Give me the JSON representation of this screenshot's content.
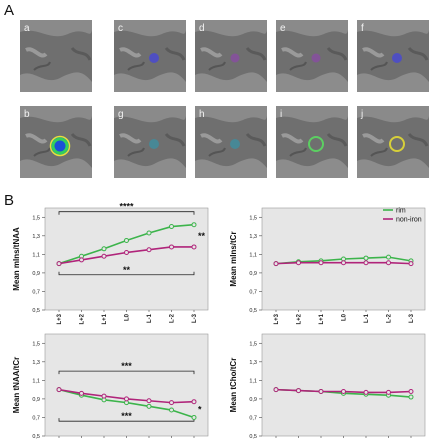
{
  "figure": {
    "panel_a_label": "A",
    "panel_b_label": "B"
  },
  "mri_tiles": [
    {
      "label": "a",
      "marker": "none"
    },
    {
      "label": "b",
      "marker": "colormap-ring"
    },
    {
      "label": "c",
      "marker": "blue-dot"
    },
    {
      "label": "d",
      "marker": "purple-dot"
    },
    {
      "label": "e",
      "marker": "purple-dot"
    },
    {
      "label": "f",
      "marker": "blue-dot"
    },
    {
      "label": "g",
      "marker": "teal-dot"
    },
    {
      "label": "h",
      "marker": "teal-dot"
    },
    {
      "label": "i",
      "marker": "green-ring"
    },
    {
      "label": "j",
      "marker": "yellow-ring"
    }
  ],
  "legend": {
    "items": [
      {
        "name": "rim",
        "color": "#3cb44b"
      },
      {
        "name": "non-iron",
        "color": "#b0247a"
      }
    ]
  },
  "chart_data": [
    {
      "type": "line",
      "ylabel": "Mean mIns/tNAA",
      "categories": [
        "L+3",
        "L+2",
        "L+1",
        "L0",
        "L-1",
        "L-2",
        "L-3"
      ],
      "ylim": [
        0.5,
        1.6
      ],
      "yticks": [
        "0,5",
        "0,7",
        "0,9",
        "1,1",
        "1,3",
        "1,5"
      ],
      "series": [
        {
          "name": "rim",
          "color": "#3cb44b",
          "values": [
            1.0,
            1.08,
            1.16,
            1.25,
            1.33,
            1.4,
            1.42
          ]
        },
        {
          "name": "non-iron",
          "color": "#b0247a",
          "values": [
            1.0,
            1.04,
            1.08,
            1.12,
            1.15,
            1.18,
            1.18
          ]
        }
      ],
      "annotations": {
        "top": "****",
        "bottom": "**",
        "right": "**"
      },
      "bracket_levels": {
        "top": 1.56,
        "bottom": 0.88
      }
    },
    {
      "type": "line",
      "ylabel": "Mean mIns/tCr",
      "categories": [
        "L+3",
        "L+2",
        "L+1",
        "L0",
        "L-1",
        "L-2",
        "L-3"
      ],
      "ylim": [
        0.5,
        1.6
      ],
      "yticks": [
        "0,5",
        "0,7",
        "0,9",
        "1,1",
        "1,3",
        "1,5"
      ],
      "series": [
        {
          "name": "rim",
          "color": "#3cb44b",
          "values": [
            1.0,
            1.02,
            1.03,
            1.05,
            1.06,
            1.07,
            1.03
          ]
        },
        {
          "name": "non-iron",
          "color": "#b0247a",
          "values": [
            1.0,
            1.01,
            1.01,
            1.01,
            1.01,
            1.01,
            1.0
          ]
        }
      ],
      "annotations": {
        "top": "",
        "bottom": "",
        "right": ""
      }
    },
    {
      "type": "line",
      "ylabel": "Mean tNAA/tCr",
      "categories": [
        "L+3",
        "L+2",
        "L+1",
        "L0",
        "L-1",
        "L-2",
        "L-3"
      ],
      "ylim": [
        0.5,
        1.6
      ],
      "yticks": [
        "0,5",
        "0,7",
        "0,9",
        "1,1",
        "1,3",
        "1,5"
      ],
      "series": [
        {
          "name": "rim",
          "color": "#3cb44b",
          "values": [
            1.0,
            0.94,
            0.89,
            0.86,
            0.82,
            0.78,
            0.7
          ]
        },
        {
          "name": "non-iron",
          "color": "#b0247a",
          "values": [
            1.0,
            0.96,
            0.93,
            0.9,
            0.88,
            0.86,
            0.87
          ]
        }
      ],
      "annotations": {
        "top": "***",
        "bottom": "***",
        "right": "*"
      },
      "bracket_levels": {
        "top": 1.2,
        "bottom": 0.66
      }
    },
    {
      "type": "line",
      "ylabel": "Mean tCho/tCr",
      "categories": [
        "L+3",
        "L+2",
        "L+1",
        "L0",
        "L-1",
        "L-2",
        "L-3"
      ],
      "ylim": [
        0.5,
        1.6
      ],
      "yticks": [
        "0,5",
        "0,7",
        "0,9",
        "1,1",
        "1,3",
        "1,5"
      ],
      "series": [
        {
          "name": "rim",
          "color": "#3cb44b",
          "values": [
            1.0,
            0.99,
            0.98,
            0.96,
            0.95,
            0.94,
            0.92
          ]
        },
        {
          "name": "non-iron",
          "color": "#b0247a",
          "values": [
            1.0,
            0.99,
            0.98,
            0.98,
            0.97,
            0.97,
            0.98
          ]
        }
      ],
      "annotations": {
        "top": "",
        "bottom": "",
        "right": ""
      }
    }
  ]
}
